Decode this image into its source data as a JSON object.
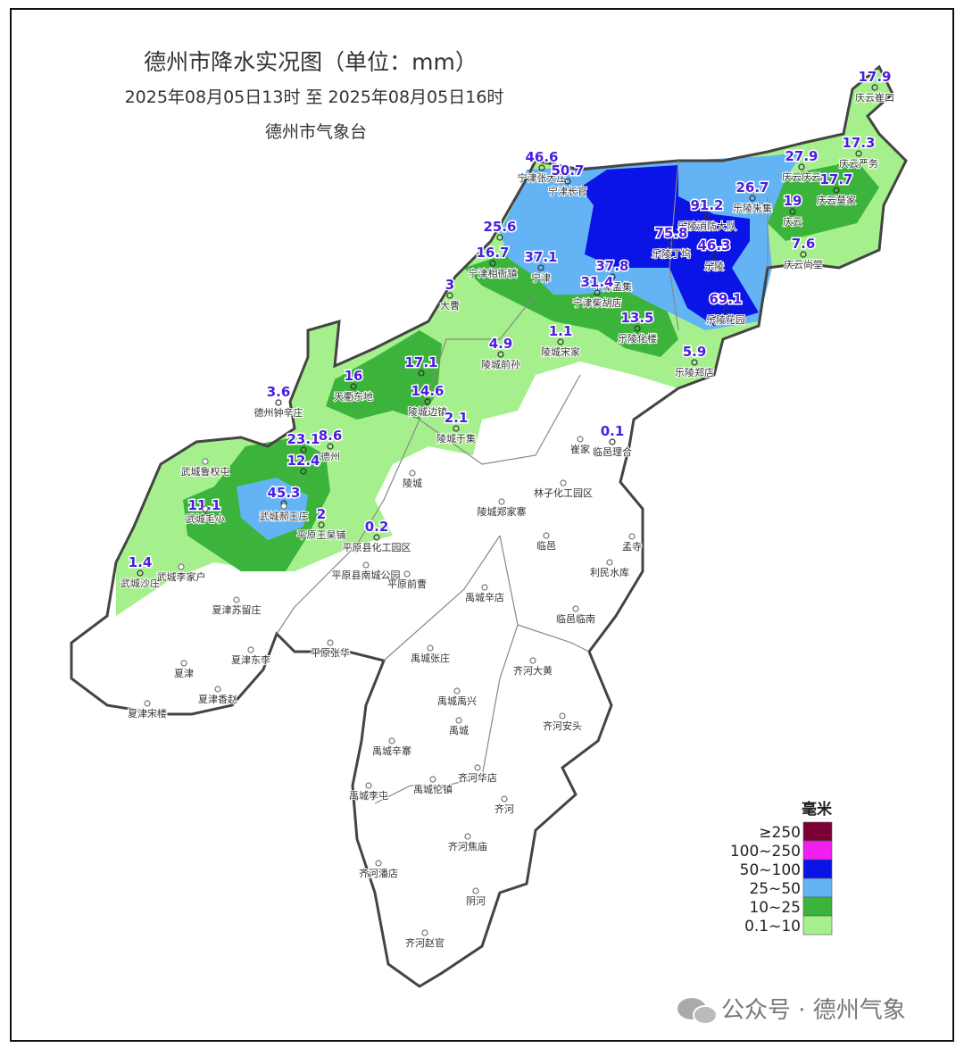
{
  "header": {
    "title": "德州市降水实况图（单位：mm）",
    "time_range": "2025年08月05日13时  至  2025年08月05日16时",
    "issuer": "德州市气象台"
  },
  "stations": [
    {
      "name": "庆云崔口",
      "value": 17.9
    },
    {
      "name": "庆云严务",
      "value": 17.3
    },
    {
      "name": "庆云庆云",
      "value": 27.9
    },
    {
      "name": "乐陵朱集",
      "value": 26.7
    },
    {
      "name": "庆云莫家",
      "value": 17.7
    },
    {
      "name": "庆云",
      "value": 19
    },
    {
      "name": "庆云尚堂",
      "value": 7.6
    },
    {
      "name": "乐陵消防大队",
      "value": 91.2
    },
    {
      "name": "乐陵丁坞",
      "value": 75.8
    },
    {
      "name": "乐陵",
      "value": 46.3
    },
    {
      "name": "乐陵花园",
      "value": 69.1
    },
    {
      "name": "宁津张大庄",
      "value": 46.6
    },
    {
      "name": "宁津长官",
      "value": 50.7
    },
    {
      "name": null,
      "value": 25.6
    },
    {
      "name": "宁津相衙镇",
      "value": 16.7
    },
    {
      "name": "宁津",
      "value": 37.1
    },
    {
      "name": "宁津孟集",
      "value": 37.8
    },
    {
      "name": "宁津柴胡店",
      "value": 31.4
    },
    {
      "name": "乐陵化楼",
      "value": 13.5
    },
    {
      "name": "大曹",
      "value": 3
    },
    {
      "name": "陵城前孙",
      "value": 4.9
    },
    {
      "name": "陵城宋家",
      "value": 1.1
    },
    {
      "name": "乐陵郑店",
      "value": 5.9
    },
    {
      "name": "天衢东地",
      "value": 16
    },
    {
      "name": null,
      "value": 17.1
    },
    {
      "name": "陵城边镇",
      "value": 14.6
    },
    {
      "name": "陵城于集",
      "value": 2.1
    },
    {
      "name": "德州钟辛庄",
      "value": 3.6
    },
    {
      "name": null,
      "value": 23.1
    },
    {
      "name": "德州",
      "value": 8.6
    },
    {
      "name": null,
      "value": 12.4
    },
    {
      "name": null,
      "value": 45.3
    },
    {
      "name": "平原王杲铺",
      "value": 2
    },
    {
      "name": "平原县化工园区",
      "value": 0.2
    },
    {
      "name": null,
      "value": 11.1
    },
    {
      "name": "武城沙庄",
      "value": 1.4
    },
    {
      "name": "临邑理合",
      "value": 0.1
    }
  ],
  "places": [
    "武城鲁权屯",
    "武城郝王庄",
    "武城毛小",
    "陵城",
    "崔家",
    "林子化工园区",
    "陵城郑家寨",
    "临邑",
    "孟寺",
    "利民水库",
    "平原县南城公园",
    "平原前曹",
    "武城李家户",
    "夏津苏留庄",
    "禹城辛店",
    "临邑临南",
    "平原张华",
    "禹城张庄",
    "夏津东李",
    "夏津",
    "齐河大黄",
    "夏津香赵",
    "禹城禹兴",
    "夏津宋楼",
    "齐河安头",
    "禹城",
    "禹城辛寨",
    "齐河华店",
    "禹城伦镇",
    "禹城李屯",
    "齐河",
    "齐河焦庙",
    "齐河潘店",
    "阴河",
    "齐河赵官"
  ],
  "legend": {
    "title": "毫米",
    "items": [
      {
        "label": "≥250",
        "color": "#7a0036"
      },
      {
        "label": "100~250",
        "color": "#f01ef0"
      },
      {
        "label": "50~100",
        "color": "#0a14e6"
      },
      {
        "label": "25~50",
        "color": "#64b4f5"
      },
      {
        "label": "10~25",
        "color": "#3cb43c"
      },
      {
        "label": "0.1~10",
        "color": "#a5f08c"
      }
    ]
  },
  "watermark": "公众号 · 德州气象"
}
